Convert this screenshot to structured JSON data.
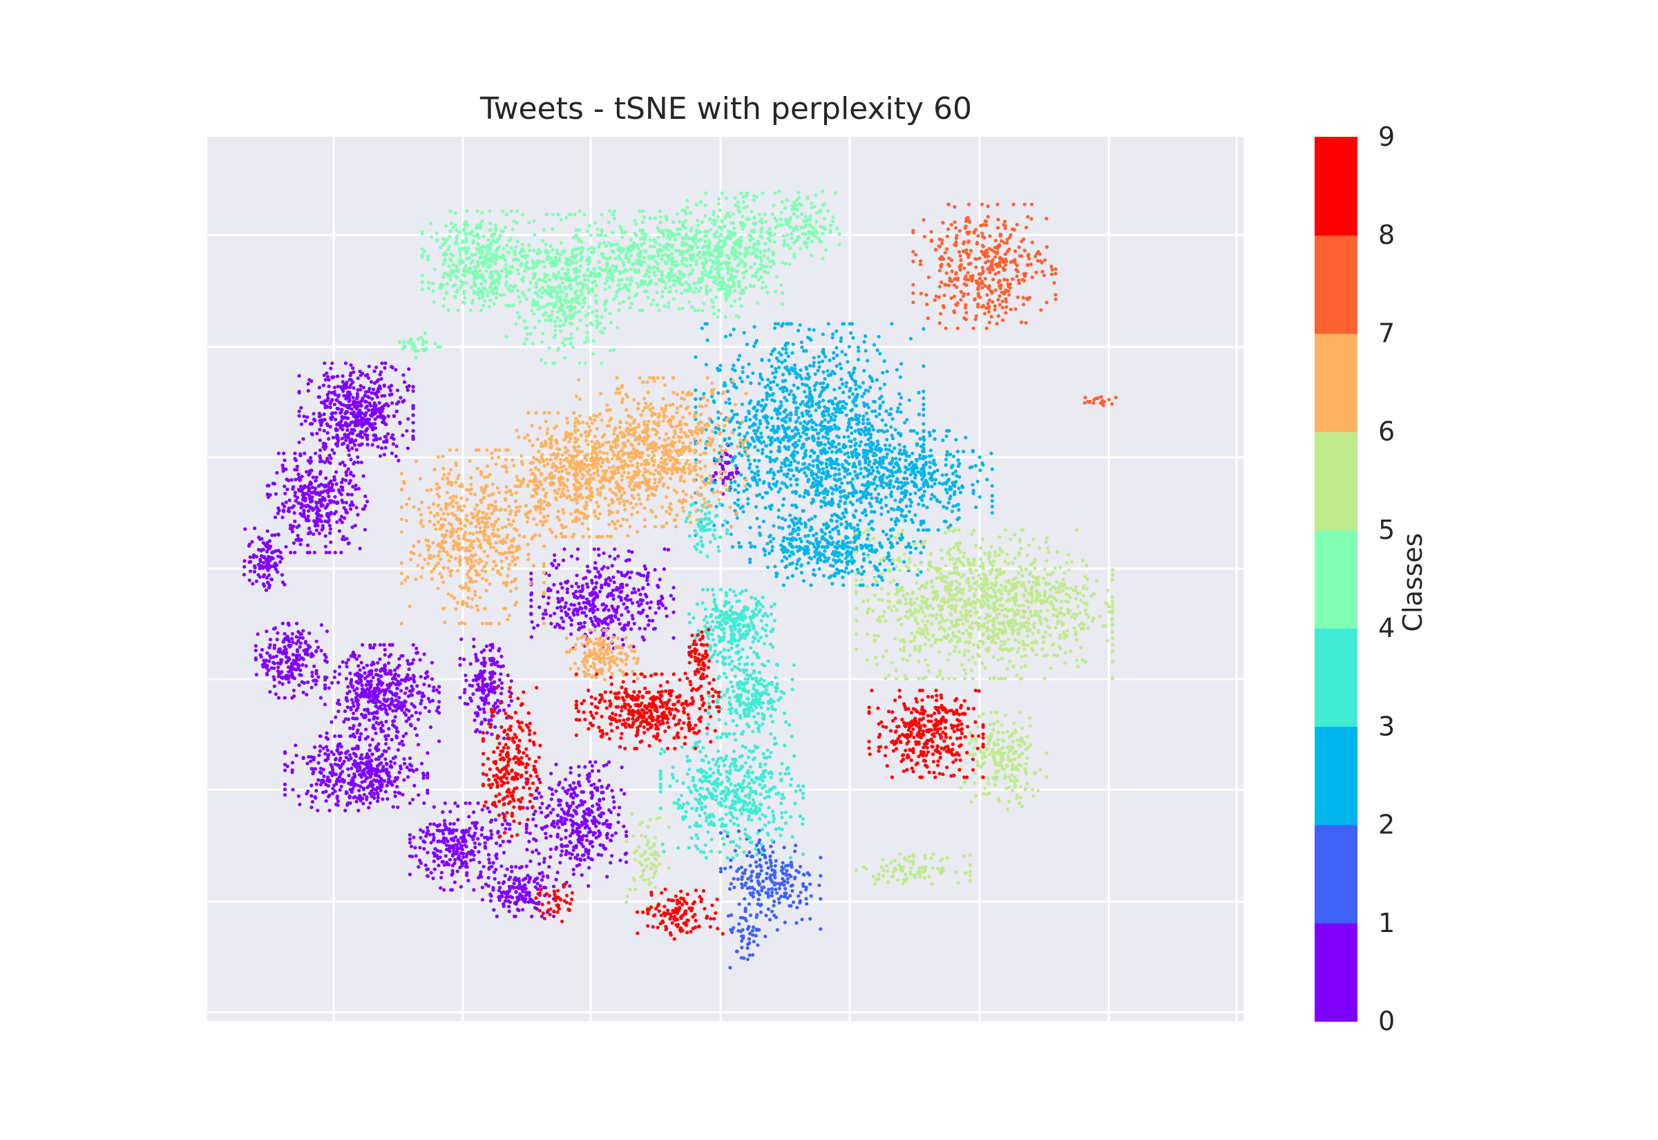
{
  "chart_data": {
    "type": "scatter",
    "title": "Tweets - tSNE with perplexity 60",
    "xlabel": "",
    "ylabel": "",
    "x_tick_labels_visible": false,
    "y_tick_labels_visible": false,
    "grid": true,
    "style": "seaborn-darkgrid",
    "colormap": "rainbow",
    "colorbar": {
      "label": "Classes",
      "ticks": [
        "0",
        "1",
        "2",
        "3",
        "4",
        "5",
        "6",
        "7",
        "8",
        "9"
      ],
      "colors": [
        "#8000ff",
        "#4062fa",
        "#00b5eb",
        "#40ecd4",
        "#80ffb4",
        "#80ffb4",
        "#c0eb8d",
        "#ffb360",
        "#ff6130",
        "#ff0000"
      ]
    },
    "clusters": [
      {
        "class": 0,
        "color": "#8000ff",
        "cx": -52,
        "cy": 38,
        "sx": 4,
        "sy": 4,
        "n": 500
      },
      {
        "class": 0,
        "color": "#8000ff",
        "cx": -58,
        "cy": 22,
        "sx": 3.5,
        "sy": 4,
        "n": 350
      },
      {
        "class": 0,
        "color": "#8000ff",
        "cx": -66,
        "cy": 12,
        "sx": 1.5,
        "sy": 2.5,
        "n": 110
      },
      {
        "class": 0,
        "color": "#8000ff",
        "cx": -62,
        "cy": -6,
        "sx": 2.5,
        "sy": 3,
        "n": 220
      },
      {
        "class": 0,
        "color": "#8000ff",
        "cx": -48,
        "cy": -12,
        "sx": 4,
        "sy": 4,
        "n": 450
      },
      {
        "class": 0,
        "color": "#8000ff",
        "cx": -52,
        "cy": -26,
        "sx": 5,
        "sy": 3,
        "n": 420
      },
      {
        "class": 0,
        "color": "#8000ff",
        "cx": -36,
        "cy": -39,
        "sx": 3.5,
        "sy": 3.5,
        "n": 280
      },
      {
        "class": 0,
        "color": "#8000ff",
        "cx": -27,
        "cy": -47,
        "sx": 2.5,
        "sy": 2,
        "n": 140
      },
      {
        "class": 0,
        "color": "#8000ff",
        "cx": -32,
        "cy": -11,
        "sx": 1.8,
        "sy": 4,
        "n": 170
      },
      {
        "class": 0,
        "color": "#8000ff",
        "cx": -14,
        "cy": 5,
        "sx": 5,
        "sy": 4,
        "n": 380
      },
      {
        "class": 0,
        "color": "#8000ff",
        "cx": -18,
        "cy": -35,
        "sx": 3.5,
        "sy": 5,
        "n": 360
      },
      {
        "class": 0,
        "color": "#8000ff",
        "cx": 5,
        "cy": 28,
        "sx": 1,
        "sy": 2,
        "n": 40
      },
      {
        "class": 1,
        "color": "#4062fa",
        "cx": 12,
        "cy": -45,
        "sx": 3.5,
        "sy": 4,
        "n": 230
      },
      {
        "class": 1,
        "color": "#4062fa",
        "cx": 8,
        "cy": -55,
        "sx": 1.5,
        "sy": 2.5,
        "n": 40
      },
      {
        "class": 2,
        "color": "#00b5eb",
        "cx": 18,
        "cy": 34,
        "sx": 8,
        "sy": 9,
        "n": 1300
      },
      {
        "class": 2,
        "color": "#00b5eb",
        "cx": 33,
        "cy": 26,
        "sx": 6,
        "sy": 4,
        "n": 400
      },
      {
        "class": 2,
        "color": "#00b5eb",
        "cx": 22,
        "cy": 14,
        "sx": 6,
        "sy": 3,
        "n": 350
      },
      {
        "class": 3,
        "color": "#40ecd4",
        "cx": 6,
        "cy": 0,
        "sx": 3,
        "sy": 3,
        "n": 280
      },
      {
        "class": 3,
        "color": "#40ecd4",
        "cx": 9,
        "cy": -12,
        "sx": 3,
        "sy": 3,
        "n": 220
      },
      {
        "class": 3,
        "color": "#40ecd4",
        "cx": 6,
        "cy": -30,
        "sx": 5,
        "sy": 5,
        "n": 480
      },
      {
        "class": 3,
        "color": "#40ecd4",
        "cx": 2,
        "cy": 18,
        "sx": 1.5,
        "sy": 2.5,
        "n": 60
      },
      {
        "class": 4,
        "color": "#80ffb4",
        "cx": -33,
        "cy": 65,
        "sx": 4,
        "sy": 4,
        "n": 420
      },
      {
        "class": 4,
        "color": "#80ffb4",
        "cx": -20,
        "cy": 60,
        "sx": 4,
        "sy": 6,
        "n": 450
      },
      {
        "class": 4,
        "color": "#80ffb4",
        "cx": -7,
        "cy": 65,
        "sx": 5,
        "sy": 4,
        "n": 380
      },
      {
        "class": 4,
        "color": "#80ffb4",
        "cx": 5,
        "cy": 66,
        "sx": 4,
        "sy": 5,
        "n": 460
      },
      {
        "class": 4,
        "color": "#80ffb4",
        "cx": 16,
        "cy": 71,
        "sx": 3,
        "sy": 3,
        "n": 150
      },
      {
        "class": 4,
        "color": "#80ffb4",
        "cx": -42,
        "cy": 50,
        "sx": 1.5,
        "sy": 1,
        "n": 30
      },
      {
        "class": 6,
        "color": "#c0eb8d",
        "cx": 45,
        "cy": 4,
        "sx": 9,
        "sy": 6,
        "n": 1100
      },
      {
        "class": 6,
        "color": "#c0eb8d",
        "cx": 48,
        "cy": -24,
        "sx": 3,
        "sy": 4,
        "n": 200
      },
      {
        "class": 6,
        "color": "#c0eb8d",
        "cx": 34,
        "cy": -43,
        "sx": 4,
        "sy": 1.2,
        "n": 90
      },
      {
        "class": 6,
        "color": "#c0eb8d",
        "cx": -7,
        "cy": -41,
        "sx": 1.5,
        "sy": 4,
        "n": 70
      },
      {
        "class": 7,
        "color": "#ffb360",
        "cx": -34,
        "cy": 16,
        "sx": 5,
        "sy": 7,
        "n": 550
      },
      {
        "class": 7,
        "color": "#ffb360",
        "cx": -18,
        "cy": 27,
        "sx": 5,
        "sy": 5,
        "n": 550
      },
      {
        "class": 7,
        "color": "#ffb360",
        "cx": -5,
        "cy": 31,
        "sx": 6,
        "sy": 6,
        "n": 650
      },
      {
        "class": 7,
        "color": "#ffb360",
        "cx": -14,
        "cy": -5,
        "sx": 2.5,
        "sy": 2,
        "n": 160
      },
      {
        "class": 8,
        "color": "#ff6130",
        "cx": 45,
        "cy": 64,
        "sx": 5,
        "sy": 5,
        "n": 400
      },
      {
        "class": 8,
        "color": "#ff6130",
        "cx": 62,
        "cy": 40,
        "sx": 1.5,
        "sy": 0.6,
        "n": 20
      },
      {
        "class": 9,
        "color": "#ff0000",
        "cx": -7,
        "cy": -15,
        "sx": 5,
        "sy": 3,
        "n": 380
      },
      {
        "class": 9,
        "color": "#ff0000",
        "cx": 36,
        "cy": -19,
        "sx": 4,
        "sy": 3.5,
        "n": 330
      },
      {
        "class": 9,
        "color": "#ff0000",
        "cx": -28,
        "cy": -24,
        "sx": 2,
        "sy": 6,
        "n": 230
      },
      {
        "class": 9,
        "color": "#ff0000",
        "cx": -2,
        "cy": -51,
        "sx": 3,
        "sy": 2,
        "n": 130
      },
      {
        "class": 9,
        "color": "#ff0000",
        "cx": -21,
        "cy": -49,
        "sx": 1.5,
        "sy": 1.5,
        "n": 40
      },
      {
        "class": 9,
        "color": "#ff0000",
        "cx": 1,
        "cy": -6,
        "sx": 1,
        "sy": 2.5,
        "n": 60
      }
    ],
    "xlim": [
      -75,
      85
    ],
    "ylim": [
      -70,
      87
    ]
  }
}
